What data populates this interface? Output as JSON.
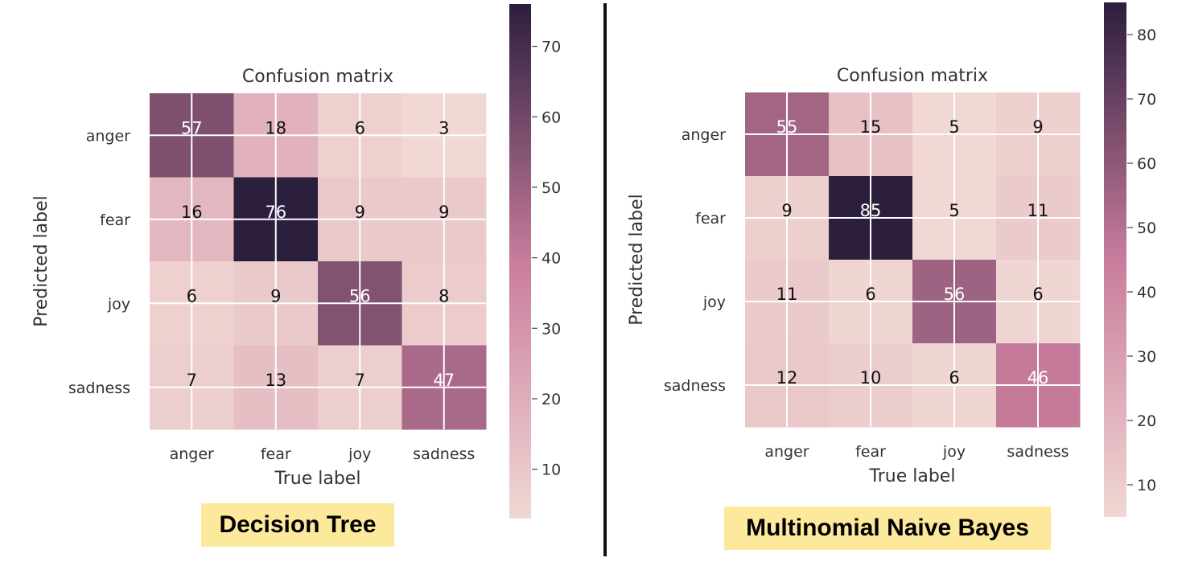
{
  "colormap": {
    "light": "#f1d8d4",
    "mid": "#c97c9c",
    "dark": "#2c1e3d"
  },
  "chart_data": [
    {
      "type": "heatmap",
      "title": "Confusion matrix",
      "xlabel": "True label",
      "ylabel": "Predicted label",
      "x_categories": [
        "anger",
        "fear",
        "joy",
        "sadness"
      ],
      "y_categories": [
        "anger",
        "fear",
        "joy",
        "sadness"
      ],
      "values": [
        [
          57,
          18,
          6,
          3
        ],
        [
          16,
          76,
          9,
          9
        ],
        [
          6,
          9,
          56,
          8
        ],
        [
          7,
          13,
          7,
          47
        ]
      ],
      "colorbar_range": [
        3,
        76
      ],
      "colorbar_ticks": [
        10,
        20,
        30,
        40,
        50,
        60,
        70
      ],
      "caption": "Decision Tree"
    },
    {
      "type": "heatmap",
      "title": "Confusion matrix",
      "xlabel": "True label",
      "ylabel": "Predicted label",
      "x_categories": [
        "anger",
        "fear",
        "joy",
        "sadness"
      ],
      "y_categories": [
        "anger",
        "fear",
        "joy",
        "sadness"
      ],
      "values": [
        [
          55,
          15,
          5,
          9
        ],
        [
          9,
          85,
          5,
          11
        ],
        [
          11,
          6,
          56,
          6
        ],
        [
          12,
          10,
          6,
          46
        ]
      ],
      "colorbar_range": [
        5,
        85
      ],
      "colorbar_ticks": [
        10,
        20,
        30,
        40,
        50,
        60,
        70,
        80
      ],
      "caption": "Multinomial Naive Bayes"
    }
  ]
}
